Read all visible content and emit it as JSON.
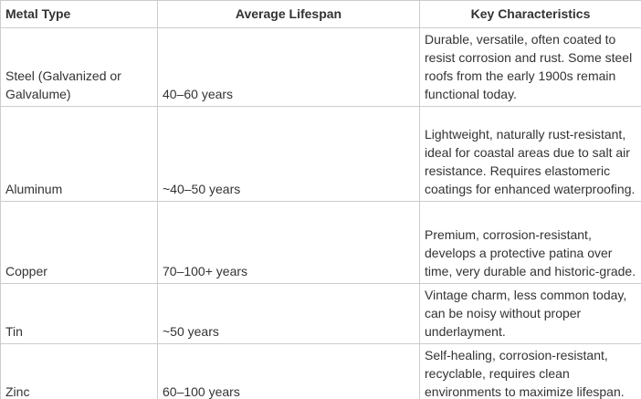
{
  "table": {
    "colors": {
      "border": "#cccccc",
      "text": "#333333",
      "background": "#ffffff"
    },
    "columns": [
      {
        "label": "Metal Type",
        "align": "left"
      },
      {
        "label": "Average Lifespan",
        "align": "center"
      },
      {
        "label": "Key Characteristics",
        "align": "center"
      }
    ],
    "rows": [
      {
        "metal": "Steel (Galvanized or Galvalume)",
        "lifespan": "40–60 years",
        "characteristics": "Durable, versatile, often coated to resist corrosion and rust. Some steel roofs from the early 1900s remain functional today."
      },
      {
        "metal": "Aluminum",
        "lifespan": "~40–50 years",
        "characteristics": "Lightweight, naturally rust-resistant, ideal for coastal areas due to salt air resistance. Requires elastomeric coatings for enhanced waterproofing."
      },
      {
        "metal": "Copper",
        "lifespan": "70–100+ years",
        "characteristics": "Premium, corrosion-resistant, develops a protective patina over time, very durable and historic-grade."
      },
      {
        "metal": "Tin",
        "lifespan": "~50 years",
        "characteristics": "Vintage charm, less common today, can be noisy without proper underlayment."
      },
      {
        "metal": "Zinc",
        "lifespan": "60–100 years",
        "characteristics": "Self-healing, corrosion-resistant, recyclable, requires clean environments to maximize lifespan."
      }
    ]
  }
}
